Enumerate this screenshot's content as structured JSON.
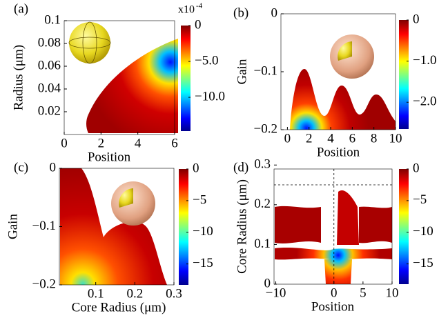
{
  "chart_data": [
    {
      "type": "heatmap",
      "panel_label": "(a)",
      "xlabel": "Position",
      "ylabel": "Radius (μm)",
      "xlim": [
        0,
        6
      ],
      "ylim": [
        0,
        0.1
      ],
      "xticks": [
        0,
        2,
        4,
        6
      ],
      "yticks": [
        0.02,
        0.04,
        0.06,
        0.08,
        0.1
      ],
      "colormap": "jet",
      "clim": [
        -14.7,
        0
      ],
      "colorbar_prefix": "x10",
      "colorbar_exponent": "-4",
      "cticks": [
        0,
        {
          "value": -5,
          "label": "−5.0"
        },
        {
          "value": -10,
          "label": "−10.0"
        }
      ]
    },
    {
      "type": "heatmap",
      "panel_label": "(b)",
      "xlabel": "Position",
      "ylabel": "Gain",
      "xlim": [
        -0.6,
        10
      ],
      "ylim": [
        -0.2,
        0
      ],
      "xticks": [
        0,
        2,
        4,
        6,
        8,
        10
      ],
      "yticks": [
        {
          "value": -0.2,
          "label": "−0.2"
        },
        {
          "value": -0.1,
          "label": "−0.1"
        },
        0
      ],
      "colormap": "jet",
      "clim": [
        -2.65,
        0
      ],
      "cticks": [
        0,
        {
          "value": -1,
          "label": "−1.0"
        },
        {
          "value": -2,
          "label": "−2.0"
        }
      ]
    },
    {
      "type": "heatmap",
      "panel_label": "(c)",
      "xlabel": "Core Radius (μm)",
      "ylabel": "Gain",
      "xlim": [
        0.007,
        0.3
      ],
      "ylim": [
        -0.2,
        0
      ],
      "xticks": [
        0.1,
        0.2,
        0.3
      ],
      "yticks": [
        {
          "value": -0.2,
          "label": "−0.2"
        },
        {
          "value": -0.1,
          "label": "−0.1"
        },
        0
      ],
      "colormap": "jet",
      "clim": [
        -18.3,
        0
      ],
      "cticks": [
        0,
        {
          "value": -5,
          "label": "−5"
        },
        {
          "value": -10,
          "label": "−10"
        },
        {
          "value": -15,
          "label": "−15"
        }
      ]
    },
    {
      "type": "heatmap",
      "panel_label": "(d)",
      "xlabel": "Position",
      "ylabel": "Core Radius (μm)",
      "xlim": [
        -10.3,
        10
      ],
      "ylim": [
        0,
        0.29
      ],
      "xticks": [
        {
          "value": -10,
          "label": "−10"
        },
        0,
        5,
        10
      ],
      "yticks": [
        0,
        0.1,
        0.2,
        0.3
      ],
      "reference_lines": [
        {
          "axis": "x",
          "value": 0
        },
        {
          "axis": "y",
          "value": 0.25
        }
      ],
      "colormap": "jet",
      "clim": [
        -18.2,
        0
      ],
      "cticks": [
        0,
        {
          "value": -5,
          "label": "−5"
        },
        {
          "value": -10,
          "label": "−10"
        },
        {
          "value": -15,
          "label": "−15"
        }
      ]
    }
  ]
}
